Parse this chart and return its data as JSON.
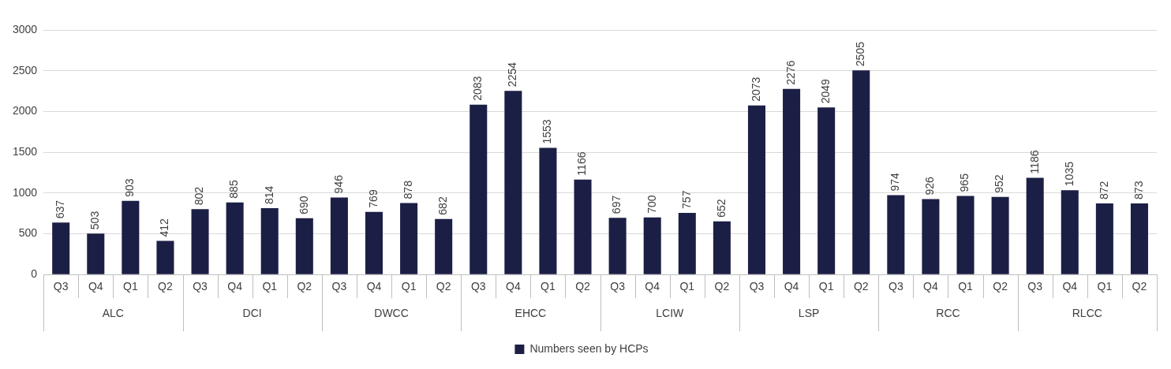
{
  "chart_data": {
    "type": "bar",
    "categories": [
      "Q3",
      "Q4",
      "Q1",
      "Q2",
      "Q3",
      "Q4",
      "Q1",
      "Q2",
      "Q3",
      "Q4",
      "Q1",
      "Q2",
      "Q3",
      "Q4",
      "Q1",
      "Q2",
      "Q3",
      "Q4",
      "Q1",
      "Q2",
      "Q3",
      "Q4",
      "Q1",
      "Q2",
      "Q3",
      "Q4",
      "Q1",
      "Q2",
      "Q3",
      "Q4",
      "Q1",
      "Q2"
    ],
    "series": [
      {
        "name": "Numbers seen by HCPs",
        "color": "#1c1f45",
        "values": [
          637,
          503,
          903,
          412,
          802,
          885,
          814,
          690,
          946,
          769,
          878,
          682,
          2083,
          2254,
          1553,
          1166,
          697,
          700,
          757,
          652,
          2073,
          2276,
          2049,
          2505,
          974,
          926,
          965,
          952,
          1186,
          1035,
          872,
          873
        ]
      }
    ],
    "annotations": [
      "ALC",
      "DCI",
      "DWCC",
      "EHCC",
      "LCIW",
      "LSP",
      "RCC",
      "RLCC"
    ],
    "ylim": [
      0,
      3000
    ],
    "yticks": [
      0,
      500,
      1000,
      1500,
      2000,
      2500,
      3000
    ],
    "grid": "y",
    "legend": "bottom",
    "data_labels": true
  }
}
